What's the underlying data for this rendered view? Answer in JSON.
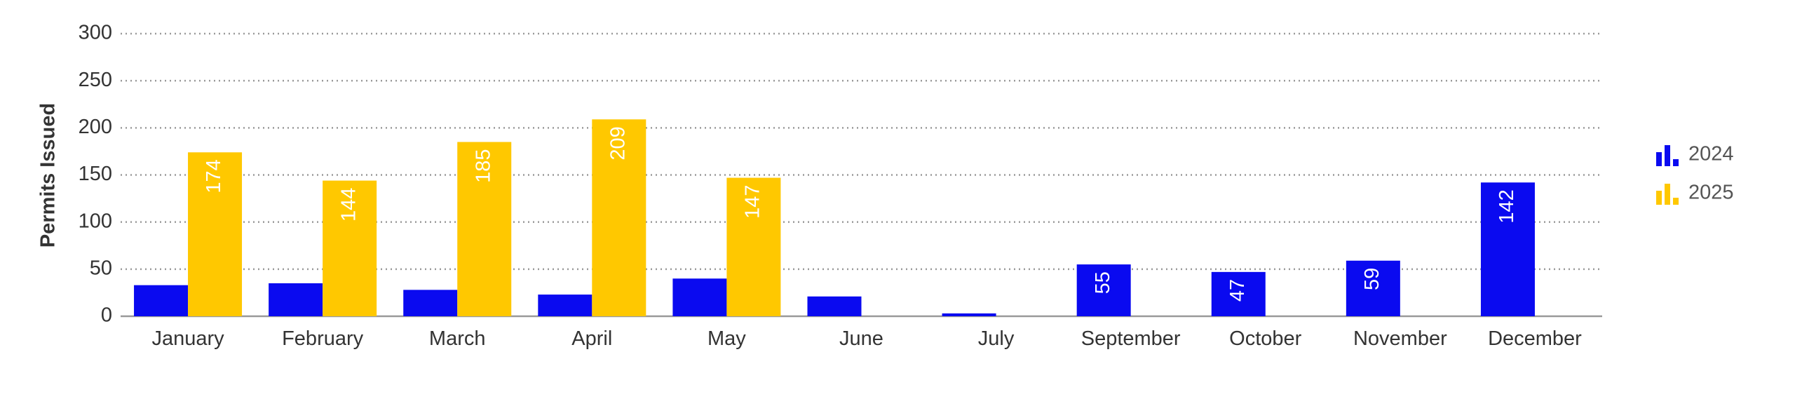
{
  "chart_data": {
    "type": "bar",
    "y_label": "Permits Issued",
    "categories": [
      "January",
      "February",
      "March",
      "April",
      "May",
      "June",
      "July",
      "September",
      "October",
      "November",
      "December"
    ],
    "series": [
      {
        "name": "2024",
        "color": "#0a0af0",
        "values": [
          33,
          35,
          28,
          23,
          40,
          21,
          3,
          55,
          47,
          59,
          142
        ]
      },
      {
        "name": "2025",
        "color": "#ffc800",
        "values": [
          174,
          144,
          185,
          209,
          147,
          null,
          null,
          null,
          null,
          null,
          null
        ]
      }
    ],
    "ylim": [
      0,
      300
    ],
    "yticks": [
      0,
      50,
      100,
      150,
      200,
      250,
      300
    ],
    "grid": true
  }
}
